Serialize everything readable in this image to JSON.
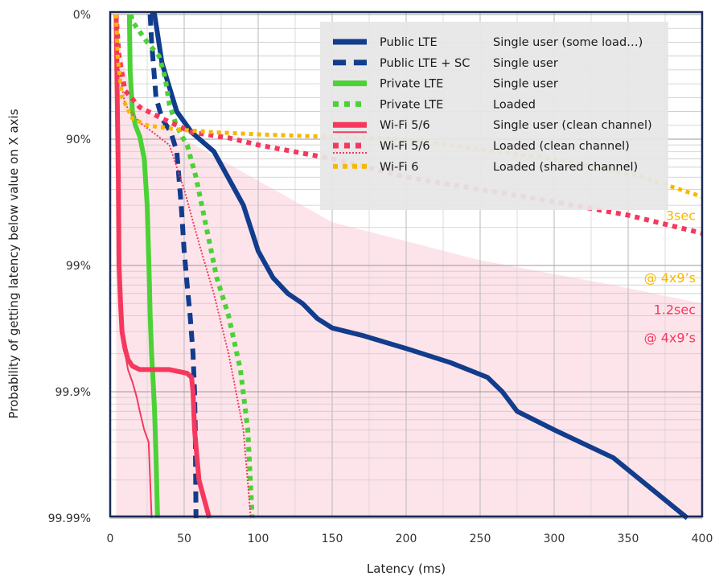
{
  "chart_data": {
    "type": "line",
    "title": "",
    "xlabel": "Latency (ms)",
    "ylabel": "Probability of getting latency below value on X axis",
    "xlim": [
      0,
      400
    ],
    "x_ticks": [
      "0",
      "50",
      "100",
      "150",
      "200",
      "250",
      "300",
      "350",
      "400"
    ],
    "y_scale": "log-nines",
    "y_ticks": [
      "0%",
      "90%",
      "99%",
      "99.9%",
      "99.99%"
    ],
    "grid": true,
    "legend_position": "top-right",
    "legend_columns": [
      "series",
      "condition"
    ],
    "shaded_region": {
      "color": "#fde4ea",
      "points": [
        [
          4,
          0
        ],
        [
          4,
          99.99
        ],
        [
          400,
          99.99
        ],
        [
          400,
          99.5
        ],
        [
          340,
          99.3
        ],
        [
          250,
          98.9
        ],
        [
          150,
          97.8
        ],
        [
          50,
          90
        ],
        [
          15,
          60
        ],
        [
          8,
          30
        ],
        [
          4,
          0
        ]
      ]
    },
    "series": [
      {
        "name": "Public LTE",
        "condition": "Single user (some load…)",
        "color": "#123c8c",
        "style": "solid",
        "width": 6,
        "points": [
          [
            27,
            0
          ],
          [
            30,
            0
          ],
          [
            35,
            35
          ],
          [
            45,
            70
          ],
          [
            55,
            85
          ],
          [
            70,
            92
          ],
          [
            90,
            97
          ],
          [
            100,
            98.7
          ],
          [
            110,
            99.2
          ],
          [
            120,
            99.4
          ],
          [
            130,
            99.5
          ],
          [
            140,
            99.62
          ],
          [
            150,
            99.68
          ],
          [
            170,
            99.72
          ],
          [
            200,
            99.78
          ],
          [
            230,
            99.83
          ],
          [
            255,
            99.87
          ],
          [
            265,
            99.9
          ],
          [
            275,
            99.93
          ],
          [
            300,
            99.95
          ],
          [
            340,
            99.97
          ],
          [
            390,
            99.99
          ]
        ]
      },
      {
        "name": "Public LTE + SC",
        "condition": "Single user",
        "color": "#123c8c",
        "style": "dash",
        "width": 6,
        "points": [
          [
            27,
            0
          ],
          [
            28,
            20
          ],
          [
            31,
            60
          ],
          [
            35,
            75
          ],
          [
            41,
            85
          ],
          [
            45,
            92
          ],
          [
            48,
            97
          ],
          [
            50,
            98.7
          ],
          [
            52,
            99.3
          ],
          [
            54,
            99.6
          ],
          [
            56,
            99.8
          ],
          [
            57,
            99.9
          ],
          [
            57.5,
            99.95
          ],
          [
            58,
            99.99
          ]
        ]
      },
      {
        "name": "Private LTE",
        "condition": "Single user",
        "color": "#4cd137",
        "style": "solid",
        "width": 6,
        "points": [
          [
            13,
            0
          ],
          [
            13.5,
            40
          ],
          [
            15,
            70
          ],
          [
            17,
            80
          ],
          [
            20,
            88
          ],
          [
            23,
            93
          ],
          [
            25,
            97
          ],
          [
            26,
            98.8
          ],
          [
            26.5,
            99.3
          ],
          [
            27,
            99.6
          ],
          [
            28,
            99.8
          ],
          [
            29,
            99.88
          ],
          [
            30,
            99.93
          ],
          [
            31,
            99.97
          ],
          [
            32,
            99.99
          ]
        ]
      },
      {
        "name": "Private LTE",
        "condition": "Loaded",
        "color": "#4cd137",
        "style": "dot",
        "width": 6,
        "points": [
          [
            14,
            0
          ],
          [
            15,
            5
          ],
          [
            25,
            20
          ],
          [
            33,
            30
          ],
          [
            37,
            45
          ],
          [
            40,
            65
          ],
          [
            44,
            78
          ],
          [
            48,
            87
          ],
          [
            52,
            91
          ],
          [
            58,
            95
          ],
          [
            65,
            98
          ],
          [
            72,
            99.2
          ],
          [
            80,
            99.6
          ],
          [
            88,
            99.85
          ],
          [
            93,
            99.95
          ],
          [
            96,
            99.99
          ]
        ]
      },
      {
        "name": "Wi-Fi 5/6",
        "condition": "Single user (clean channel)",
        "color": "#f5385e",
        "style": "solid",
        "width": 6,
        "points": [
          [
            4,
            0
          ],
          [
            4.5,
            40
          ],
          [
            5,
            80
          ],
          [
            5.5,
            95
          ],
          [
            6,
            99
          ],
          [
            7,
            99.5
          ],
          [
            8,
            99.7
          ],
          [
            10,
            99.78
          ],
          [
            12,
            99.82
          ],
          [
            15,
            99.84
          ],
          [
            20,
            99.85
          ],
          [
            30,
            99.85
          ],
          [
            40,
            99.85
          ],
          [
            52,
            99.86
          ],
          [
            55,
            99.87
          ],
          [
            56,
            99.9
          ],
          [
            57,
            99.95
          ],
          [
            60,
            99.98
          ],
          [
            67,
            99.99
          ]
        ]
      },
      {
        "name": "Wi-Fi 5/6",
        "condition": "",
        "color": "#f5385e",
        "style": "solid",
        "width": 2,
        "points": [
          [
            4,
            70
          ],
          [
            5,
            96
          ],
          [
            6,
            99.3
          ],
          [
            7,
            99.65
          ],
          [
            9,
            99.76
          ],
          [
            12,
            99.85
          ],
          [
            15,
            99.88
          ],
          [
            18,
            99.91
          ],
          [
            20,
            99.93
          ],
          [
            23,
            99.95
          ],
          [
            26,
            99.96
          ],
          [
            27,
            99.98
          ],
          [
            28,
            99.99
          ]
        ]
      },
      {
        "name": "Wi-Fi 5/6",
        "condition": "Loaded (clean channel)",
        "color": "#f5385e",
        "style": "dot",
        "width": 6,
        "points": [
          [
            4,
            0
          ],
          [
            6,
            30
          ],
          [
            10,
            55
          ],
          [
            20,
            67
          ],
          [
            35,
            75
          ],
          [
            55,
            85
          ],
          [
            80,
            89
          ],
          [
            100,
            91
          ],
          [
            150,
            93
          ],
          [
            200,
            95
          ],
          [
            250,
            96
          ],
          [
            300,
            96.8
          ],
          [
            350,
            97.5
          ],
          [
            400,
            98.2
          ]
        ]
      },
      {
        "name": "Wi-Fi 5/6",
        "condition": "",
        "color": "#f5385e",
        "style": "dot",
        "width": 2,
        "points": [
          [
            4,
            0
          ],
          [
            6,
            40
          ],
          [
            10,
            65
          ],
          [
            20,
            78
          ],
          [
            30,
            86
          ],
          [
            40,
            91
          ],
          [
            50,
            96
          ],
          [
            60,
            98.5
          ],
          [
            70,
            99.4
          ],
          [
            80,
            99.8
          ],
          [
            90,
            99.95
          ],
          [
            95,
            99.99
          ]
        ]
      },
      {
        "name": "Wi-Fi 6",
        "condition": "Loaded (shared channel)",
        "color": "#f6b800",
        "style": "dot",
        "width": 5,
        "points": [
          [
            4,
            0
          ],
          [
            5,
            30
          ],
          [
            8,
            60
          ],
          [
            15,
            75
          ],
          [
            25,
            80
          ],
          [
            45,
            83
          ],
          [
            70,
            85
          ],
          [
            100,
            86.5
          ],
          [
            140,
            88
          ],
          [
            200,
            90
          ],
          [
            260,
            92
          ],
          [
            300,
            93
          ],
          [
            360,
            95
          ],
          [
            400,
            96.5
          ]
        ]
      }
    ],
    "annotations": [
      {
        "text": "3sec",
        "color": "#f6b800",
        "x": 400,
        "y": 97.5
      },
      {
        "text": "@ 4x9’s",
        "color": "#f6b800",
        "x": 400,
        "y": 99.2
      },
      {
        "text": "1.2sec",
        "color": "#f5385e",
        "x": 400,
        "y": 99.55
      },
      {
        "text": "@ 4x9’s",
        "color": "#f5385e",
        "x": 400,
        "y": 99.73
      }
    ]
  }
}
